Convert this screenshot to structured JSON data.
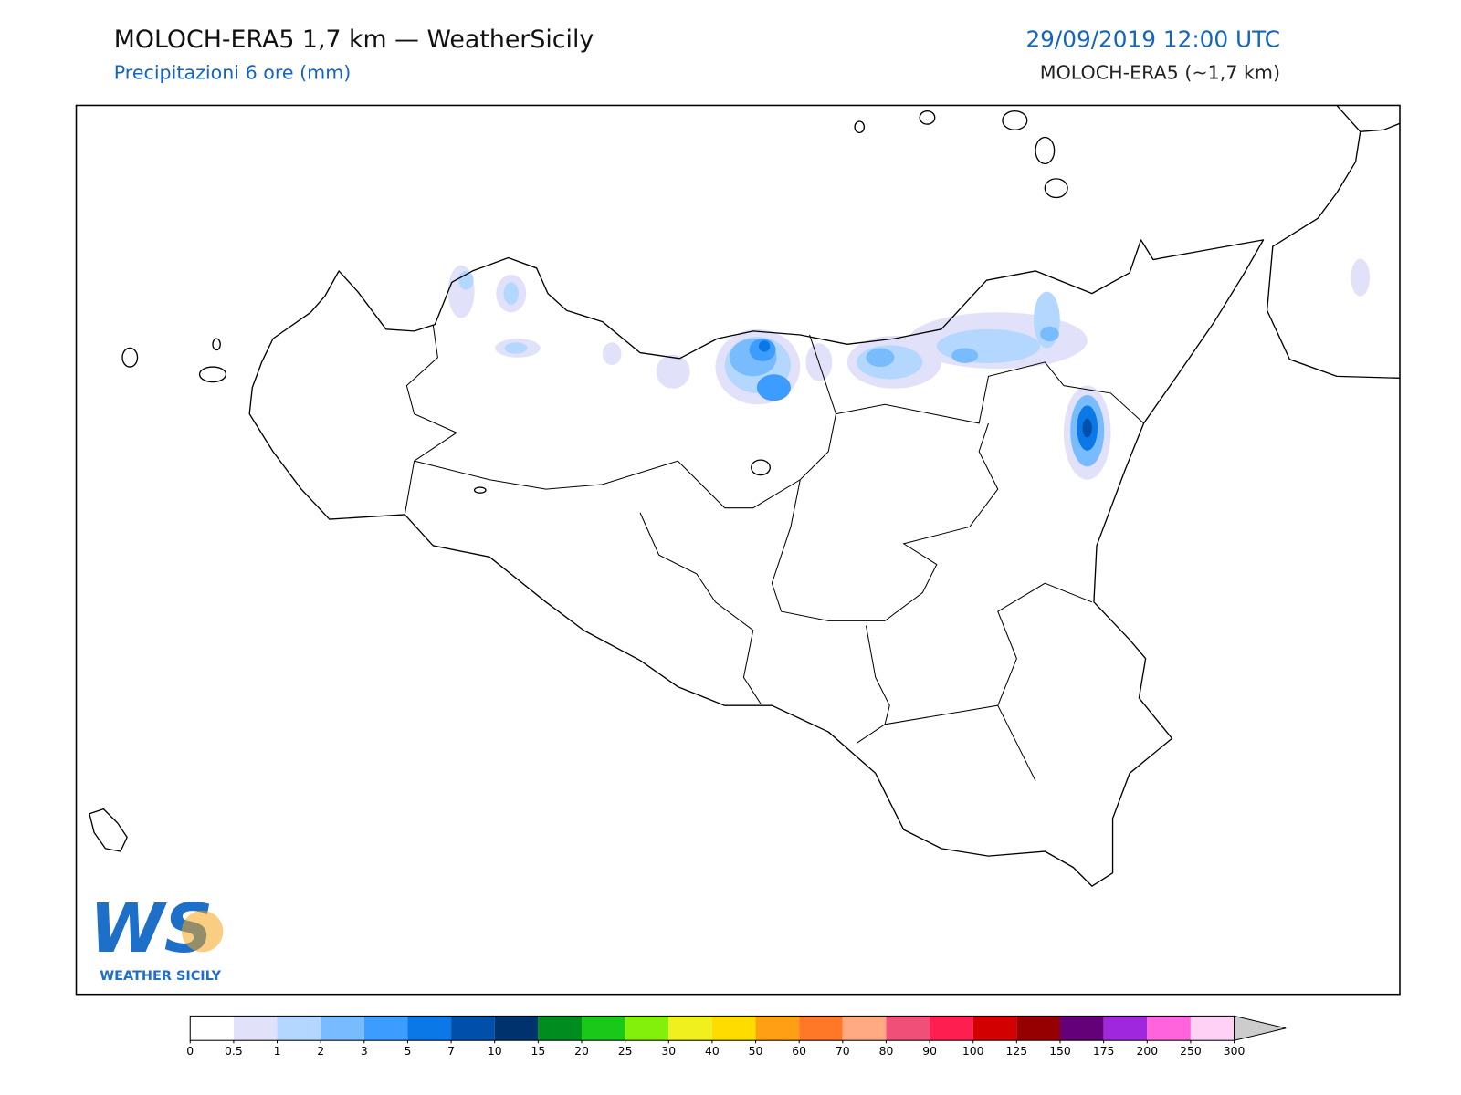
{
  "header": {
    "title": "MOLOCH-ERA5 1,7 km — WeatherSicily",
    "subtitle": "Precipitazioni 6 ore (mm)",
    "date": "29/09/2019 12:00 UTC",
    "model": "MOLOCH-ERA5 (~1,7 km)"
  },
  "logo": {
    "mark": "WS",
    "name": "WEATHER SICILY"
  },
  "colorbar": {
    "ticks": [
      0,
      0.5,
      1,
      2,
      3,
      5,
      7,
      10,
      15,
      20,
      25,
      30,
      40,
      50,
      60,
      70,
      80,
      90,
      100,
      125,
      150,
      175,
      200,
      250,
      300
    ],
    "colors": [
      "#ffffff",
      "#e1e1fa",
      "#b4d7ff",
      "#78bcff",
      "#3c9cff",
      "#0a78e6",
      "#0050aa",
      "#00326e",
      "#008c1e",
      "#19c819",
      "#82f00a",
      "#f0f01e",
      "#ffdc00",
      "#ff9f14",
      "#ff7828",
      "#ffaa82",
      "#f05078",
      "#ff1e50",
      "#d20000",
      "#960000",
      "#640078",
      "#a028dc",
      "#ff64dc",
      "#ffd2f5"
    ],
    "over_color": "#cccccc"
  }
}
